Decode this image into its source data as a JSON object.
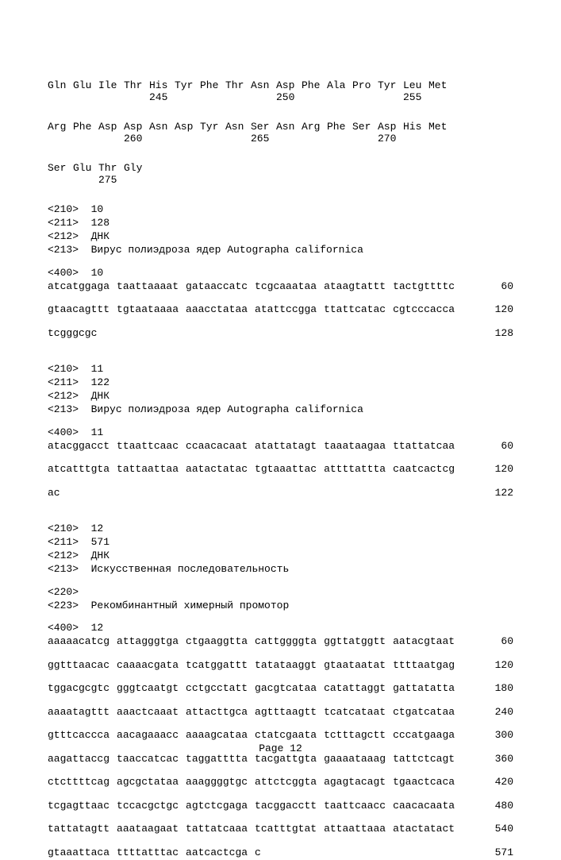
{
  "protein_rows": [
    {
      "aa": [
        "Gln",
        "Glu",
        "Ile",
        "Thr",
        "His",
        "Tyr",
        "Phe",
        "Thr",
        "Asn",
        "Asp",
        "Phe",
        "Ala",
        "Pro",
        "Tyr",
        "Leu",
        "Met"
      ],
      "nums": [
        "",
        "",
        "",
        "",
        "245",
        "",
        "",
        "",
        "",
        "250",
        "",
        "",
        "",
        "",
        "255",
        ""
      ]
    },
    {
      "aa": [
        "Arg",
        "Phe",
        "Asp",
        "Asp",
        "Asn",
        "Asp",
        "Tyr",
        "Asn",
        "Ser",
        "Asn",
        "Arg",
        "Phe",
        "Ser",
        "Asp",
        "His",
        "Met"
      ],
      "nums": [
        "",
        "",
        "",
        "260",
        "",
        "",
        "",
        "",
        "265",
        "",
        "",
        "",
        "",
        "270",
        "",
        ""
      ]
    },
    {
      "aa": [
        "Ser",
        "Glu",
        "Thr",
        "Gly",
        "",
        "",
        "",
        "",
        "",
        "",
        "",
        "",
        "",
        "",
        "",
        ""
      ],
      "nums": [
        "",
        "",
        "275",
        "",
        "",
        "",
        "",
        "",
        "",
        "",
        "",
        "",
        "",
        "",
        "",
        ""
      ]
    }
  ],
  "seq10": {
    "headers": [
      "<210>  10",
      "<211>  128",
      "<212>  ДНК",
      "<213>  Вирус полиэдроза ядер Autographa californica"
    ],
    "label400": "<400>  10",
    "rows": [
      {
        "g": [
          "atcatggaga",
          "taattaaaat",
          "gataaccatc",
          "tcgcaaataa",
          "ataagtattt",
          "tactgttttc"
        ],
        "pos": "60"
      },
      {
        "g": [
          "gtaacagttt",
          "tgtaataaaa",
          "aaacctataa",
          "atattccgga",
          "ttattcatac",
          "cgtcccacca"
        ],
        "pos": "120"
      },
      {
        "g": [
          "tcgggcgc"
        ],
        "pos": "128"
      }
    ]
  },
  "seq11": {
    "headers": [
      "<210>  11",
      "<211>  122",
      "<212>  ДНК",
      "<213>  Вирус полиэдроза ядер Autographa californica"
    ],
    "label400": "<400>  11",
    "rows": [
      {
        "g": [
          "atacggacct",
          "ttaattcaac",
          "ccaacacaat",
          "atattatagt",
          "taaataagaa",
          "ttattatcaa"
        ],
        "pos": "60"
      },
      {
        "g": [
          "atcatttgta",
          "tattaattaa",
          "aatactatac",
          "tgtaaattac",
          "attttattta",
          "caatcactcg"
        ],
        "pos": "120"
      },
      {
        "g": [
          "ac"
        ],
        "pos": "122"
      }
    ]
  },
  "seq12": {
    "headers": [
      "<210>  12",
      "<211>  571",
      "<212>  ДНК",
      "<213>  Искусственная последовательность"
    ],
    "feature": [
      "<220>",
      "<223>  Рекомбинантный химерный промотор"
    ],
    "label400": "<400>  12",
    "rows": [
      {
        "g": [
          "aaaaacatcg",
          "attagggtga",
          "ctgaaggtta",
          "cattggggta",
          "ggttatggtt",
          "aatacgtaat"
        ],
        "pos": "60"
      },
      {
        "g": [
          "ggtttaacac",
          "caaaacgata",
          "tcatggattt",
          "tatataaggt",
          "gtaataatat",
          "ttttaatgag"
        ],
        "pos": "120"
      },
      {
        "g": [
          "tggacgcgtc",
          "gggtcaatgt",
          "cctgcctatt",
          "gacgtcataa",
          "catattaggt",
          "gattatatta"
        ],
        "pos": "180"
      },
      {
        "g": [
          "aaaatagttt",
          "aaactcaaat",
          "attacttgca",
          "agtttaagtt",
          "tcatcataat",
          "ctgatcataa"
        ],
        "pos": "240"
      },
      {
        "g": [
          "gtttcaccca",
          "aacagaaacc",
          "aaaagcataa",
          "ctatcgaata",
          "tctttagctt",
          "cccatgaaga"
        ],
        "pos": "300"
      },
      {
        "g": [
          "aagattaccg",
          "taaccatcac",
          "taggatttta",
          "tacgattgta",
          "gaaaataaag",
          "tattctcagt"
        ],
        "pos": "360"
      },
      {
        "g": [
          "ctcttttcag",
          "agcgctataa",
          "aaaggggtgc",
          "attctcggta",
          "agagtacagt",
          "tgaactcaca"
        ],
        "pos": "420"
      },
      {
        "g": [
          "tcgagttaac",
          "tccacgctgc",
          "agtctcgaga",
          "tacggacctt",
          "taattcaacc",
          "caacacaata"
        ],
        "pos": "480"
      },
      {
        "g": [
          "tattatagtt",
          "aaataagaat",
          "tattatcaaa",
          "tcatttgtat",
          "attaattaaa",
          "atactatact"
        ],
        "pos": "540"
      },
      {
        "g": [
          "gtaaattaca",
          "ttttatttac",
          "aatcactcga",
          "c"
        ],
        "pos": "571"
      }
    ]
  },
  "page_label": "Page 12"
}
